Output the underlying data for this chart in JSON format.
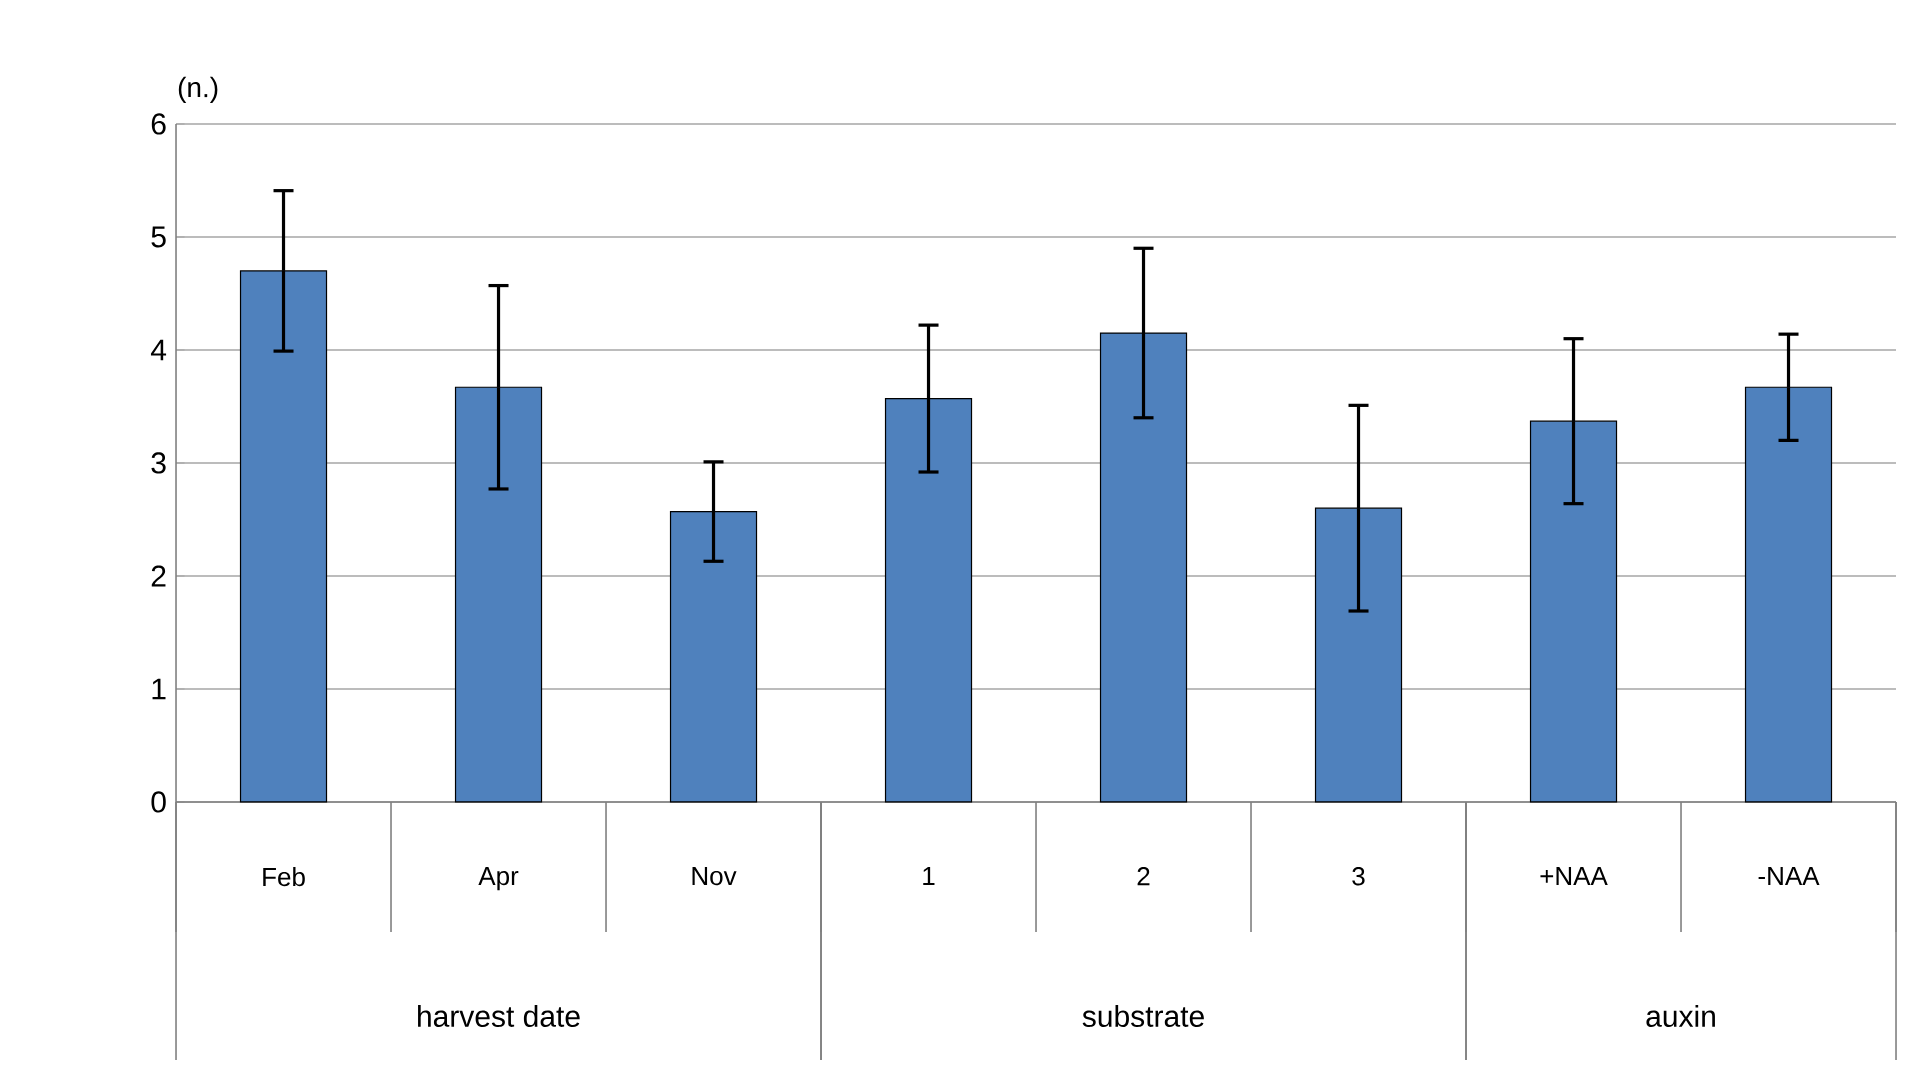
{
  "chart_data": {
    "type": "bar",
    "ylabel": "(n.)",
    "categories": [
      "Feb",
      "Apr",
      "Nov",
      "1",
      "2",
      "3",
      "+NAA",
      "-NAA"
    ],
    "values": [
      4.7,
      3.67,
      2.57,
      3.57,
      4.15,
      2.6,
      3.37,
      3.67
    ],
    "errors": [
      0.71,
      0.9,
      0.44,
      0.65,
      0.75,
      0.91,
      0.73,
      0.47
    ],
    "color": "#4f81bd",
    "ylim": [
      0,
      6
    ],
    "yticks": [
      0,
      1,
      2,
      3,
      4,
      5,
      6
    ],
    "grid": "y",
    "annotations": [
      "harvest date",
      "substrate",
      "auxin"
    ]
  }
}
